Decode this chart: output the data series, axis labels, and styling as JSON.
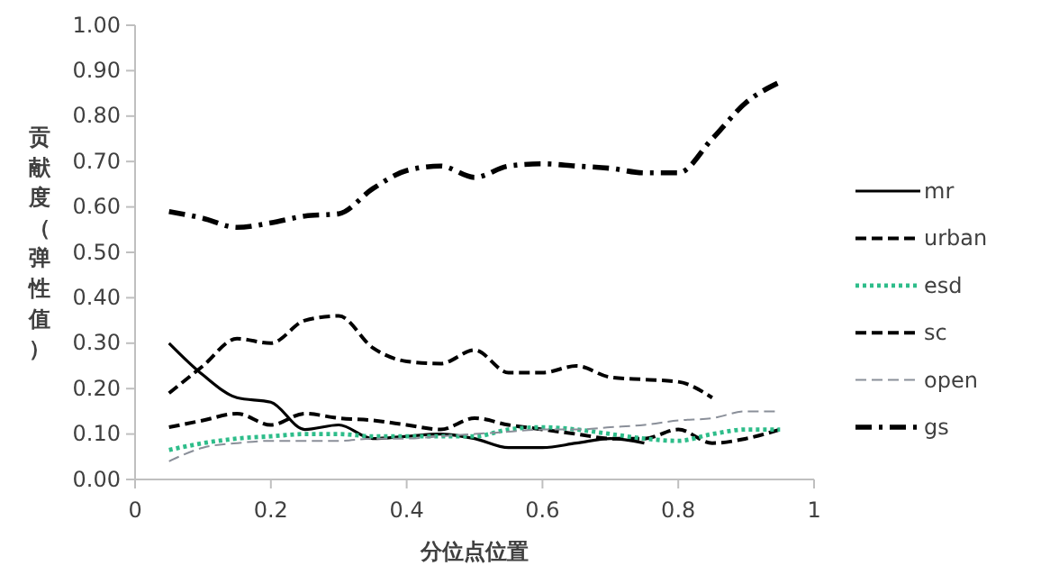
{
  "chart_data": {
    "type": "line",
    "xlabel": "分位点位置",
    "ylabel": "贡献度（弹性值）",
    "x": [
      0.05,
      0.1,
      0.15,
      0.2,
      0.25,
      0.3,
      0.35,
      0.4,
      0.45,
      0.5,
      0.55,
      0.6,
      0.65,
      0.7,
      0.75,
      0.8,
      0.85,
      0.9,
      0.95
    ],
    "series": [
      {
        "name": "mr",
        "color": "#000000",
        "line_style": "solid",
        "values": [
          0.3,
          0.23,
          0.18,
          0.17,
          0.11,
          0.12,
          0.09,
          0.095,
          0.1,
          0.09,
          0.07,
          0.07,
          0.08,
          0.09,
          0.08,
          null,
          null,
          null,
          null
        ]
      },
      {
        "name": "urban",
        "color": "#000000",
        "line_style": "dashed",
        "values": [
          0.115,
          0.13,
          0.145,
          0.12,
          0.145,
          0.135,
          0.13,
          0.12,
          0.11,
          0.135,
          0.12,
          0.11,
          0.1,
          0.09,
          0.09,
          0.11,
          0.08,
          0.09,
          0.11
        ]
      },
      {
        "name": "esd",
        "color": "#2ebd8a",
        "line_style": "dotted",
        "values": [
          0.065,
          0.08,
          0.09,
          0.095,
          0.1,
          0.1,
          0.095,
          0.095,
          0.095,
          0.095,
          0.11,
          0.115,
          0.11,
          0.1,
          0.09,
          0.085,
          0.1,
          0.11,
          0.11
        ]
      },
      {
        "name": "sc",
        "color": "#000000",
        "line_style": "dashed",
        "values": [
          0.19,
          0.25,
          0.31,
          0.3,
          0.35,
          0.36,
          0.29,
          0.26,
          0.255,
          0.285,
          0.235,
          0.235,
          0.25,
          0.225,
          0.22,
          0.215,
          0.18,
          null,
          null
        ]
      },
      {
        "name": "open",
        "color": "#8a8f99",
        "line_style": "dashed",
        "values": [
          0.04,
          0.07,
          0.08,
          0.085,
          0.085,
          0.085,
          0.09,
          0.09,
          0.095,
          0.1,
          0.105,
          0.11,
          0.11,
          0.115,
          0.12,
          0.13,
          0.135,
          0.15,
          0.15
        ]
      },
      {
        "name": "gs",
        "color": "#000000",
        "line_style": "dashdot",
        "values": [
          0.59,
          0.575,
          0.555,
          0.565,
          0.58,
          0.585,
          0.64,
          0.68,
          0.69,
          0.665,
          0.69,
          0.695,
          0.69,
          0.685,
          0.675,
          0.675,
          0.75,
          0.83,
          0.875
        ]
      }
    ],
    "xlim": [
      0,
      1
    ],
    "xticks": [
      0,
      0.2,
      0.4,
      0.6,
      0.8,
      1
    ],
    "ylim": [
      0,
      1
    ],
    "yticks": [
      {
        "value": 0,
        "label": "0.00"
      },
      {
        "value": 0.1,
        "label": "0.10"
      },
      {
        "value": 0.2,
        "label": "0.20"
      },
      {
        "value": 0.3,
        "label": "0.30"
      },
      {
        "value": 0.4,
        "label": "0.40"
      },
      {
        "value": 0.5,
        "label": "0.50"
      },
      {
        "value": 0.6,
        "label": "0.60"
      },
      {
        "value": 0.7,
        "label": "0.70"
      },
      {
        "value": 0.8,
        "label": "0.80"
      },
      {
        "value": 0.9,
        "label": "0.90"
      },
      {
        "value": 1,
        "label": "1.00"
      }
    ],
    "grid": false,
    "legend": "right",
    "marker": "none"
  }
}
